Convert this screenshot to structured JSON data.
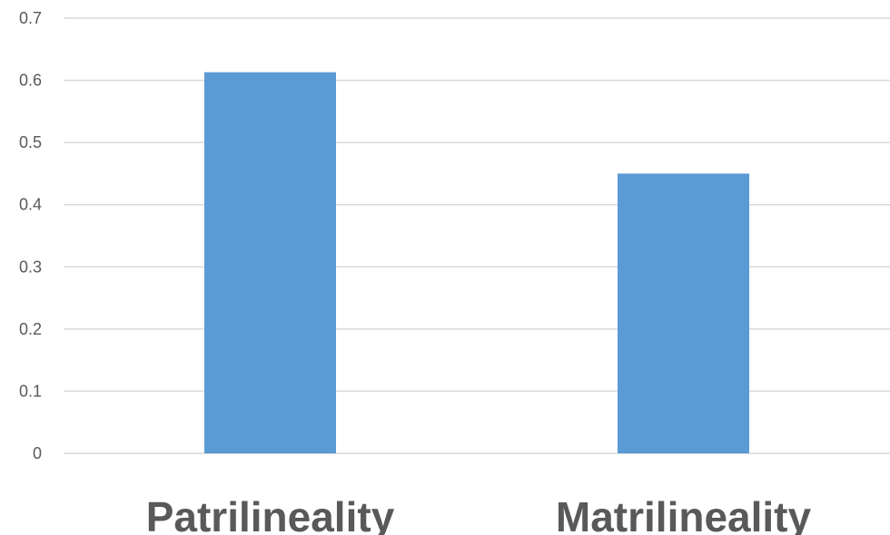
{
  "chart_data": {
    "type": "bar",
    "categories": [
      "Patrilineality",
      "Matrilineality"
    ],
    "series": [
      {
        "values": [
          0.613,
          0.45
        ]
      }
    ],
    "yticks": [
      "0",
      "0.1",
      "0.2",
      "0.3",
      "0.4",
      "0.5",
      "0.6",
      "0.7"
    ],
    "ylim": [
      0,
      0.7
    ],
    "grid": true,
    "legend": "none",
    "colors": {
      "bar": "#5b9bd5",
      "grid": "#d9d9d9",
      "text": "#595959"
    }
  }
}
